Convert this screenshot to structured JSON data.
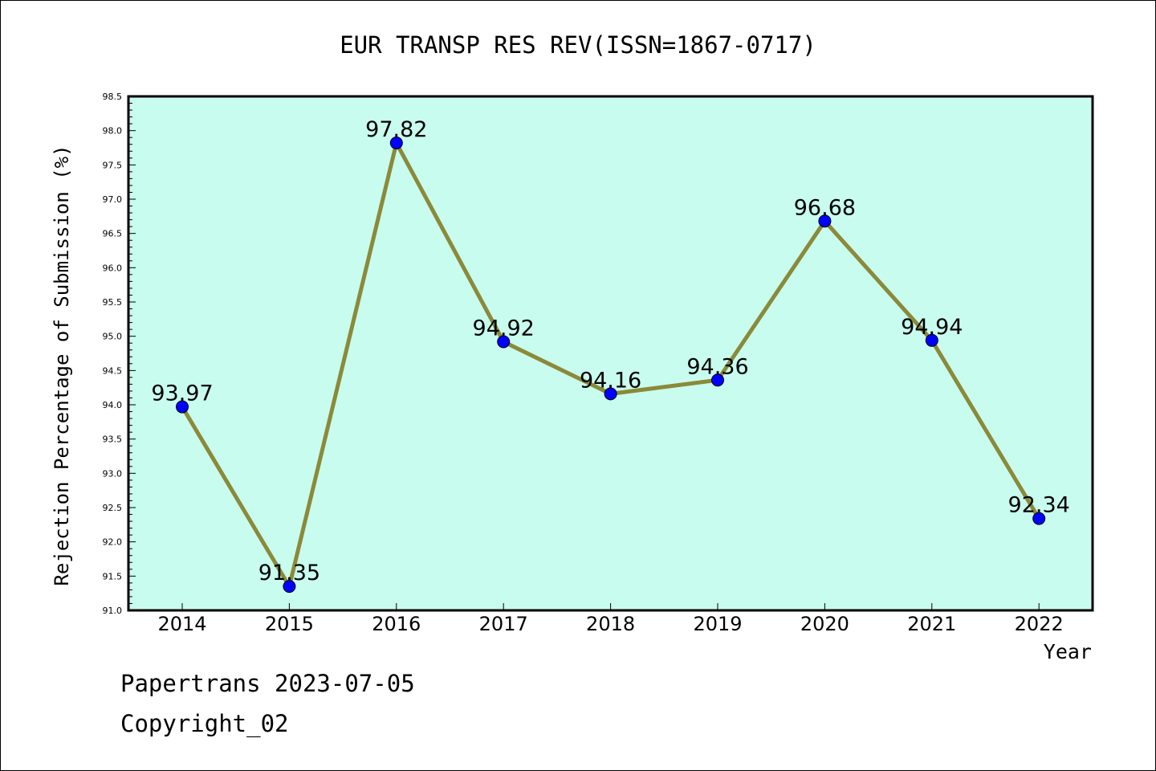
{
  "chart_data": {
    "type": "line",
    "title": "EUR TRANSP RES REV(ISSN=1867-0717)",
    "xlabel": "Year",
    "ylabel": "Rejection Percentage of Submission (%)",
    "categories": [
      "2014",
      "2015",
      "2016",
      "2017",
      "2018",
      "2019",
      "2020",
      "2021",
      "2022"
    ],
    "series": [
      {
        "values": [
          93.97,
          91.35,
          97.82,
          94.92,
          94.16,
          94.36,
          96.68,
          94.94,
          92.34
        ],
        "labels": [
          "93.97",
          "91.35",
          "97.82",
          "94.92",
          "94.16",
          "94.36",
          "96.68",
          "94.94",
          "92.34"
        ]
      }
    ],
    "ylim": [
      91.0,
      98.5
    ],
    "yticks": [
      "91.0",
      "91.5",
      "92.0",
      "92.5",
      "93.0",
      "93.5",
      "94.0",
      "94.5",
      "95.0",
      "95.5",
      "96.0",
      "96.5",
      "97.0",
      "97.5",
      "98.0",
      "98.5"
    ],
    "grid": false,
    "colors": {
      "plot_background": "#c8fcee",
      "line": "#8b8a3a",
      "marker": "#0000ff"
    }
  },
  "footer": {
    "line1": "Papertrans 2023-07-05",
    "line2": "Copyright_02"
  }
}
